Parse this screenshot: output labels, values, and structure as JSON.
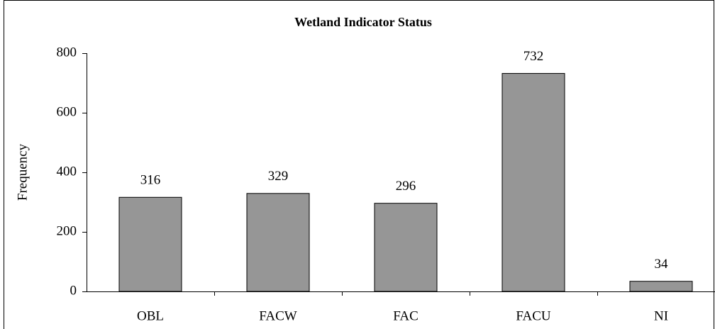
{
  "chart_data": {
    "type": "bar",
    "title": "Wetland Indicator Status",
    "y_label": "Frequency",
    "categories": [
      "OBL",
      "FACW",
      "FAC",
      "FACU",
      "NI"
    ],
    "values": [
      316,
      329,
      296,
      732,
      34
    ],
    "color": "#969696",
    "ylim": [
      0,
      800
    ],
    "yticks": [
      0,
      200,
      400,
      600,
      800
    ],
    "grid": false,
    "data_labels": true
  }
}
